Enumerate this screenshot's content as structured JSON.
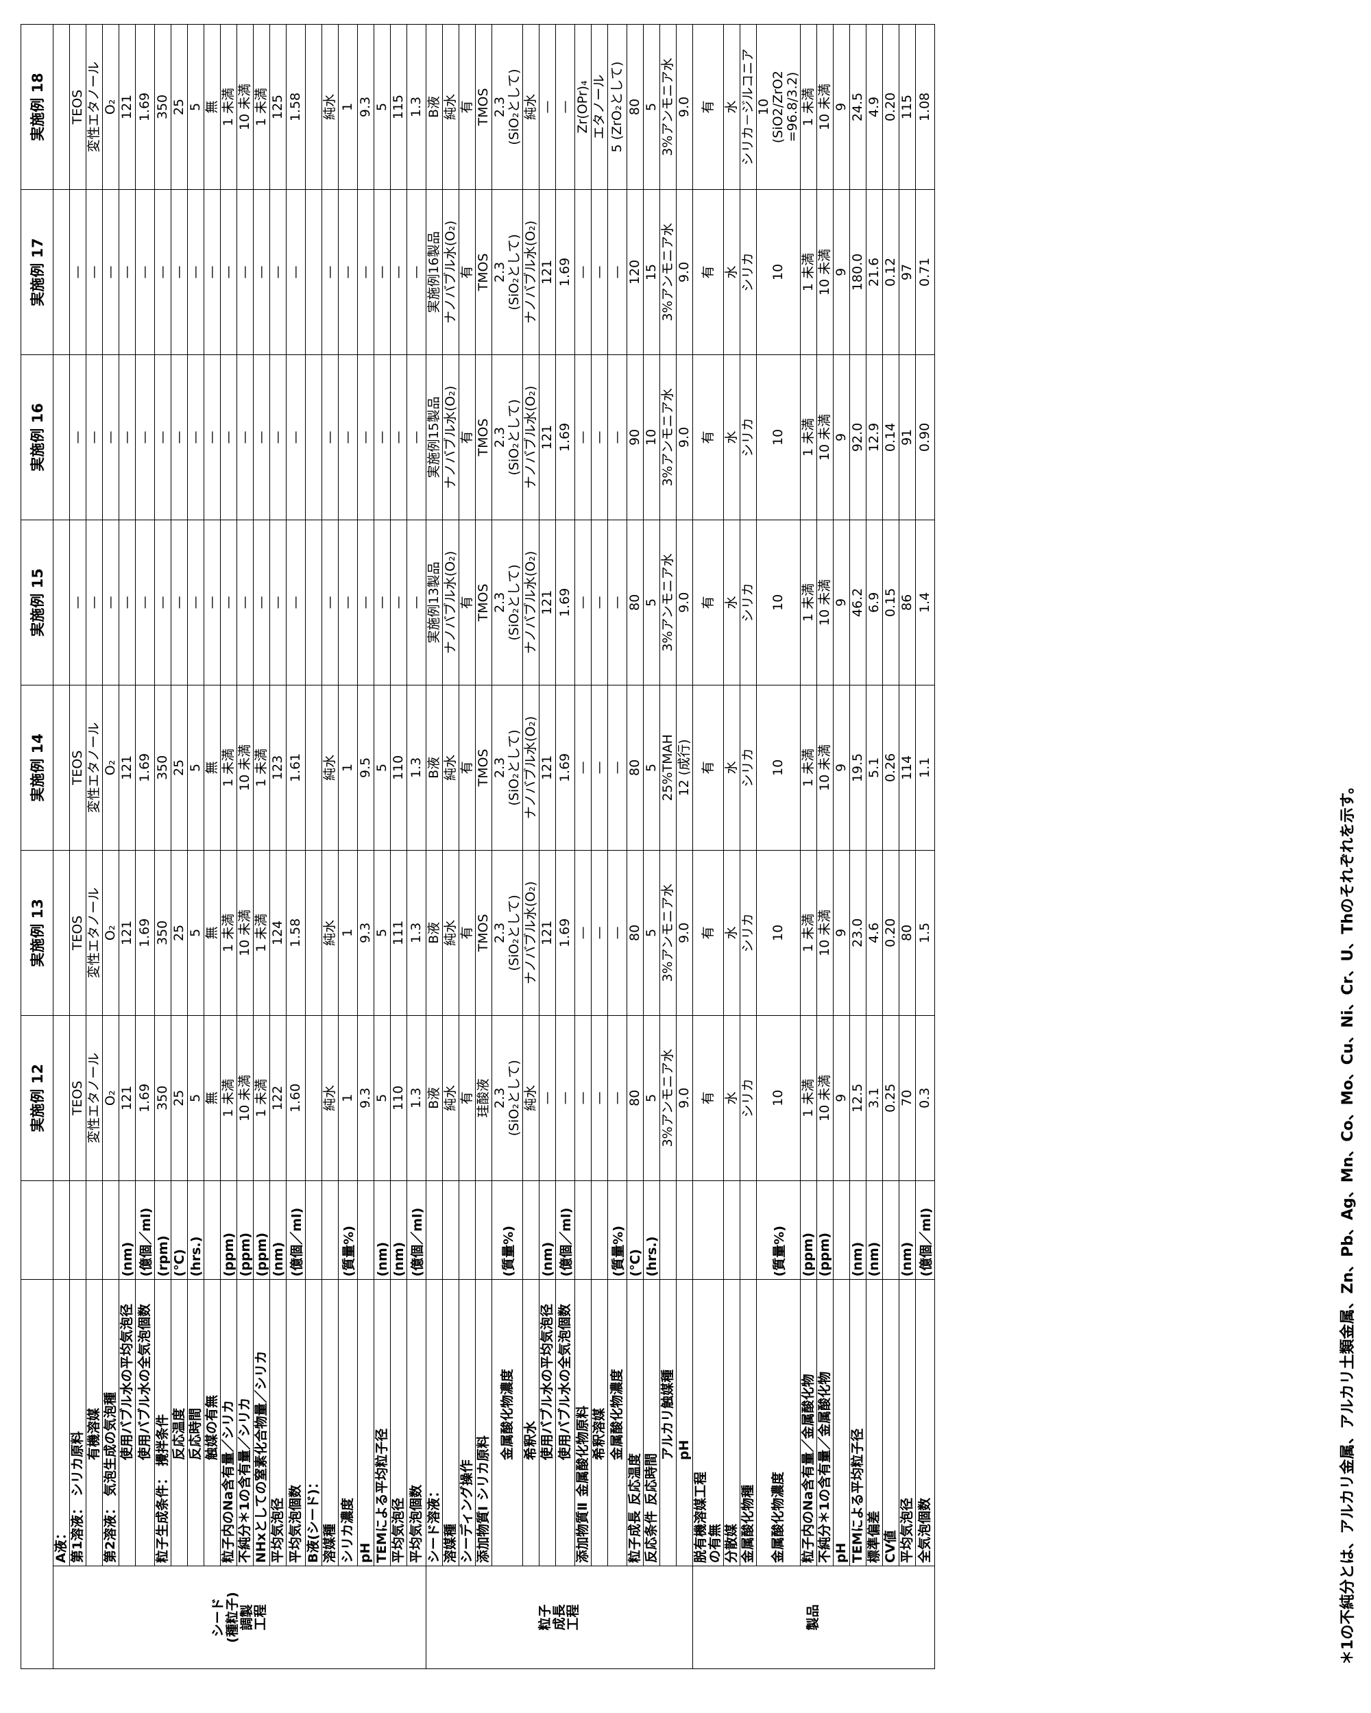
{
  "headers": [
    "実施例 12",
    "実施例 13",
    "実施例 14",
    "実施例 15",
    "実施例 16",
    "実施例 17",
    "実施例 18"
  ],
  "sections": {
    "seed": "シード\n(種粒子)\n調製\n工程",
    "growth": "粒子\n成長\n工程",
    "product": "製品"
  },
  "rows": [
    {
      "a": "A液：",
      "b": "",
      "c": "",
      "u": "",
      "v": [
        "",
        "",
        "",
        "",
        "",
        "",
        ""
      ]
    },
    {
      "a": "第1溶液：",
      "b": "シリカ原料",
      "c": "",
      "u": "",
      "v": [
        "TEOS",
        "TEOS",
        "TEOS",
        "—",
        "—",
        "—",
        "TEOS"
      ]
    },
    {
      "a": "",
      "b": "有機溶媒",
      "c": "",
      "u": "",
      "v": [
        "変性エタノール",
        "変性エタノール",
        "変性エタノール",
        "—",
        "—",
        "—",
        "変性エタノール"
      ]
    },
    {
      "a": "第2溶液：",
      "b": "気泡生成の気泡種",
      "c": "",
      "u": "",
      "v": [
        "O₂",
        "O₂",
        "O₂",
        "—",
        "—",
        "—",
        "O₂"
      ]
    },
    {
      "a": "",
      "b": "使用バブル水の平均気泡径",
      "c": "",
      "u": "(nm)",
      "v": [
        "121",
        "121",
        "121",
        "—",
        "—",
        "—",
        "121"
      ]
    },
    {
      "a": "",
      "b": "使用バブル水の全気泡個数",
      "c": "",
      "u": "(億個／ml)",
      "v": [
        "1.69",
        "1.69",
        "1.69",
        "—",
        "—",
        "—",
        "1.69"
      ]
    },
    {
      "a": "粒子生成条件：",
      "b": "攪拌条件",
      "c": "",
      "u": "(rpm)",
      "v": [
        "350",
        "350",
        "350",
        "—",
        "—",
        "—",
        "350"
      ]
    },
    {
      "a": "",
      "b": "反応温度",
      "c": "",
      "u": "(℃)",
      "v": [
        "25",
        "25",
        "25",
        "—",
        "—",
        "—",
        "25"
      ]
    },
    {
      "a": "",
      "b": "反応時間",
      "c": "",
      "u": "(hrs.)",
      "v": [
        "5",
        "5",
        "5",
        "—",
        "—",
        "—",
        "5"
      ]
    },
    {
      "a": "",
      "b": "触媒の有無",
      "c": "",
      "u": "",
      "v": [
        "無",
        "無",
        "無",
        "—",
        "—",
        "—",
        "無"
      ]
    },
    {
      "a": "粒子内のNa含有量／シリカ",
      "b": "",
      "c": "",
      "u": "(ppm)",
      "v": [
        "1 未満",
        "1 未満",
        "1 未満",
        "—",
        "—",
        "—",
        "1 未満"
      ]
    },
    {
      "a": "不純分＊1の含有量／シリカ",
      "b": "",
      "c": "",
      "u": "(ppm)",
      "v": [
        "10 未満",
        "10 未満",
        "10 未満",
        "—",
        "—",
        "—",
        "10 未満"
      ]
    },
    {
      "a": "NHxとしての窒素化合物量／シリカ",
      "b": "",
      "c": "",
      "u": "(ppm)",
      "v": [
        "1 未満",
        "1 未満",
        "1 未満",
        "—",
        "—",
        "—",
        "1 未満"
      ]
    },
    {
      "a": "平均気泡径",
      "b": "",
      "c": "",
      "u": "(nm)",
      "v": [
        "122",
        "124",
        "123",
        "—",
        "—",
        "—",
        "125"
      ]
    },
    {
      "a": "平均気泡個数",
      "b": "",
      "c": "",
      "u": "(億個／ml)",
      "v": [
        "1.60",
        "1.58",
        "1.61",
        "—",
        "—",
        "—",
        "1.58"
      ]
    },
    {
      "a": "B液(シード)：",
      "b": "",
      "c": "",
      "u": "",
      "v": [
        "",
        "",
        "",
        "",
        "",
        "",
        ""
      ]
    },
    {
      "a": "溶媒種",
      "b": "",
      "c": "",
      "u": "",
      "v": [
        "純水",
        "純水",
        "純水",
        "—",
        "—",
        "—",
        "純水"
      ]
    },
    {
      "a": "シリカ濃度",
      "b": "",
      "c": "",
      "u": "(質量%)",
      "v": [
        "1",
        "1",
        "1",
        "—",
        "—",
        "—",
        "1"
      ]
    },
    {
      "a": "pH",
      "b": "",
      "c": "",
      "u": "",
      "v": [
        "9.3",
        "9.3",
        "9.5",
        "—",
        "—",
        "—",
        "9.3"
      ]
    },
    {
      "a": "TEMによる平均粒子径",
      "b": "",
      "c": "",
      "u": "(nm)",
      "v": [
        "5",
        "5",
        "5",
        "—",
        "—",
        "—",
        "5"
      ]
    },
    {
      "a": "平均気泡径",
      "b": "",
      "c": "",
      "u": "(nm)",
      "v": [
        "110",
        "111",
        "110",
        "—",
        "—",
        "—",
        "115"
      ]
    },
    {
      "a": "平均気泡個数",
      "b": "",
      "c": "",
      "u": "(億個／ml)",
      "v": [
        "1.3",
        "1.3",
        "1.3",
        "—",
        "—",
        "—",
        "1.3"
      ]
    },
    {
      "a": "シード溶液：",
      "b": "",
      "c": "",
      "u": "",
      "v": [
        "B液",
        "B液",
        "B液",
        "実施例13製品",
        "実施例15製品",
        "実施例16製品",
        "B液"
      ]
    },
    {
      "a": "溶媒種",
      "b": "",
      "c": "",
      "u": "",
      "v": [
        "純水",
        "純水",
        "純水",
        "ナノバブル水(O₂)",
        "ナノバブル水(O₂)",
        "ナノバブル水(O₂)",
        "純水"
      ]
    },
    {
      "a": "シーディング操作",
      "b": "",
      "c": "",
      "u": "",
      "v": [
        "有",
        "有",
        "有",
        "有",
        "有",
        "有",
        "有"
      ]
    },
    {
      "a": "添加物質Ⅰ",
      "b": "シリカ原料",
      "c": "",
      "u": "",
      "v": [
        "珪酸液",
        "TMOS",
        "TMOS",
        "TMOS",
        "TMOS",
        "TMOS",
        "TMOS"
      ]
    },
    {
      "a": "",
      "b": "金属酸化物濃度",
      "c": "",
      "u": "(質量%)",
      "v": [
        "2.3\n(SiO₂として)",
        "2.3\n(SiO₂として)",
        "2.3\n(SiO₂として)",
        "2.3\n(SiO₂として)",
        "2.3\n(SiO₂として)",
        "2.3\n(SiO₂として)",
        "2.3\n(SiO₂として)"
      ]
    },
    {
      "a": "",
      "b": "希釈水",
      "c": "",
      "u": "",
      "v": [
        "純水",
        "ナノバブル水(O₂)",
        "ナノバブル水(O₂)",
        "ナノバブル水(O₂)",
        "ナノバブル水(O₂)",
        "ナノバブル水(O₂)",
        "純水"
      ]
    },
    {
      "a": "",
      "b": "使用バブル水の平均気泡径",
      "c": "",
      "u": "(nm)",
      "v": [
        "—",
        "121",
        "121",
        "121",
        "121",
        "121",
        "—"
      ]
    },
    {
      "a": "",
      "b": "使用バブル水の全気泡個数",
      "c": "",
      "u": "(億個／ml)",
      "v": [
        "—",
        "1.69",
        "1.69",
        "1.69",
        "1.69",
        "1.69",
        "—"
      ]
    },
    {
      "a": "添加物質Ⅱ",
      "b": "金属酸化物原料",
      "c": "",
      "u": "",
      "v": [
        "—",
        "—",
        "—",
        "—",
        "—",
        "—",
        "Zr(OPr)₄"
      ]
    },
    {
      "a": "",
      "b": "希釈溶媒",
      "c": "",
      "u": "",
      "v": [
        "—",
        "—",
        "—",
        "—",
        "—",
        "—",
        "エタノール"
      ]
    },
    {
      "a": "",
      "b": "金属酸化物濃度",
      "c": "",
      "u": "(質量%)",
      "v": [
        "—",
        "—",
        "—",
        "—",
        "—",
        "—",
        "5 (ZrO₂として)"
      ]
    },
    {
      "a": "粒子成長",
      "b": "反応温度",
      "c": "",
      "u": "(℃)",
      "v": [
        "80",
        "80",
        "80",
        "80",
        "90",
        "120",
        "80"
      ]
    },
    {
      "a": "反応条件",
      "b": "反応時間",
      "c": "",
      "u": "(hrs.)",
      "v": [
        "5",
        "5",
        "5",
        "5",
        "10",
        "15",
        "5"
      ]
    },
    {
      "a": "",
      "b": "アルカリ触媒種",
      "c": "",
      "u": "",
      "v": [
        "3%アンモニア水",
        "3%アンモニア水",
        "25%TMAH",
        "3%アンモニア水",
        "3%アンモニア水",
        "3%アンモニア水",
        "3%アンモニア水"
      ]
    },
    {
      "a": "",
      "b": "pH",
      "c": "",
      "u": "",
      "v": [
        "9.0",
        "9.0",
        "12 (成行)",
        "9.0",
        "9.0",
        "9.0",
        "9.0"
      ]
    },
    {
      "a": "脱有機溶媒工程\nの有無",
      "b": "",
      "c": "",
      "u": "",
      "v": [
        "有",
        "有",
        "有",
        "有",
        "有",
        "有",
        "有"
      ]
    },
    {
      "a": "分散媒",
      "b": "",
      "c": "",
      "u": "",
      "v": [
        "水",
        "水",
        "水",
        "水",
        "水",
        "水",
        "水"
      ]
    },
    {
      "a": "金属酸化物種",
      "b": "",
      "c": "",
      "u": "",
      "v": [
        "シリカ",
        "シリカ",
        "シリカ",
        "シリカ",
        "シリカ",
        "シリカ",
        "シリカ－ジルコニア"
      ]
    },
    {
      "a": "金属酸化物濃度",
      "b": "",
      "c": "",
      "u": "(質量%)",
      "v": [
        "10",
        "10",
        "10",
        "10",
        "10",
        "10",
        "10\n(SiO2/ZrO2\n=96.8/3.2)"
      ]
    },
    {
      "a": "粒子内のNa含有量／金属酸化物",
      "b": "",
      "c": "",
      "u": "(ppm)",
      "v": [
        "1 未満",
        "1 未満",
        "1 未満",
        "1 未満",
        "1 未満",
        "1 未満",
        "1 未満"
      ]
    },
    {
      "a": "不純分＊1の含有量／金属酸化物",
      "b": "",
      "c": "",
      "u": "(ppm)",
      "v": [
        "10 未満",
        "10 未満",
        "10 未満",
        "10 未満",
        "10 未満",
        "10 未満",
        "10 未満"
      ]
    },
    {
      "a": "pH",
      "b": "",
      "c": "",
      "u": "",
      "v": [
        "9",
        "9",
        "9",
        "9",
        "9",
        "9",
        "9"
      ]
    },
    {
      "a": "TEMによる平均粒子径",
      "b": "",
      "c": "",
      "u": "(nm)",
      "v": [
        "12.5",
        "23.0",
        "19.5",
        "46.2",
        "92.0",
        "180.0",
        "24.5"
      ]
    },
    {
      "a": "標準偏差",
      "b": "",
      "c": "",
      "u": "(nm)",
      "v": [
        "3.1",
        "4.6",
        "5.1",
        "6.9",
        "12.9",
        "21.6",
        "4.9"
      ]
    },
    {
      "a": "CV値",
      "b": "",
      "c": "",
      "u": "",
      "v": [
        "0.25",
        "0.20",
        "0.26",
        "0.15",
        "0.14",
        "0.12",
        "0.20"
      ]
    },
    {
      "a": "平均気泡径",
      "b": "",
      "c": "",
      "u": "(nm)",
      "v": [
        "70",
        "80",
        "114",
        "86",
        "91",
        "97",
        "115"
      ]
    },
    {
      "a": "全気泡個数",
      "b": "",
      "c": "",
      "u": "(億個／ml)",
      "v": [
        "0.3",
        "1.5",
        "1.1",
        "1.4",
        "0.90",
        "0.71",
        "1.08"
      ]
    }
  ],
  "footnote": "＊1の不純分とは、アルカリ金属、アルカリ土類金属、Zn、Pb、Ag、Mn、Co、Mo、Cu、Ni、Cr、U、Thのそれぞれを示す。"
}
